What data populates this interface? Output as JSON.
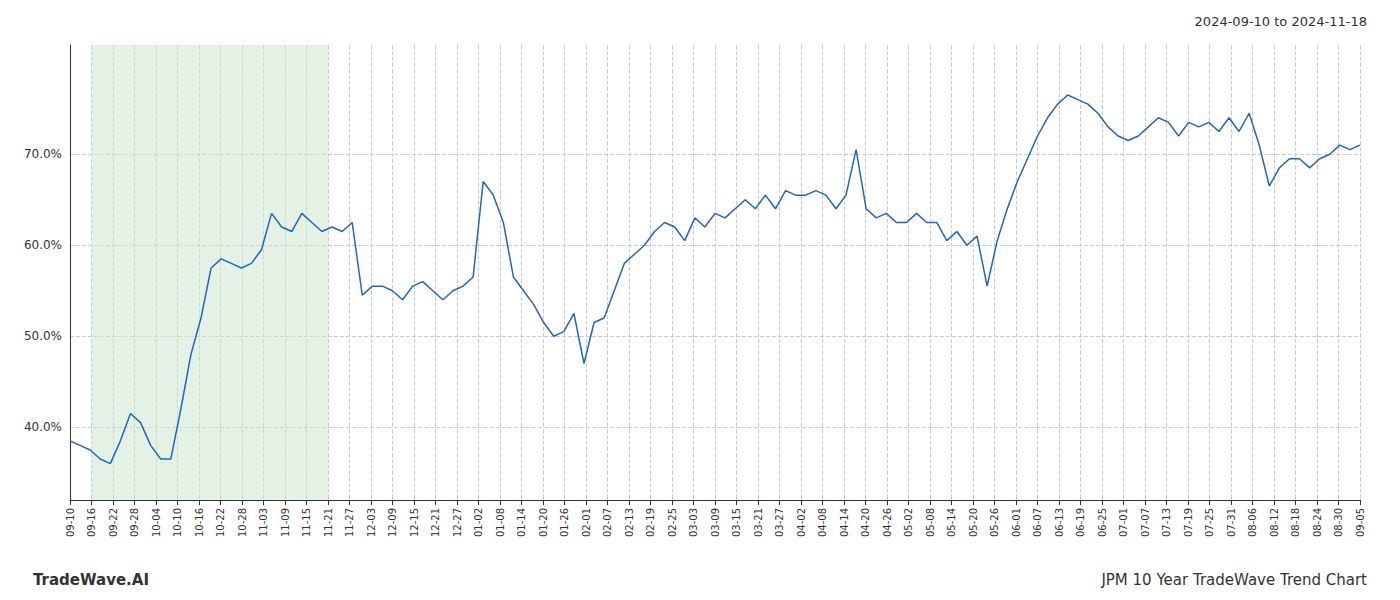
{
  "chart_data": {
    "type": "line",
    "title": "2024-09-10 to 2024-11-18",
    "footer_left": "TradeWave.AI",
    "footer_right": "JPM 10 Year TradeWave Trend Chart",
    "color": "#2266bb",
    "grid": true,
    "shaded_range": {
      "from": "09-16",
      "to": "11-21",
      "color": "#c8e6c9"
    },
    "xlim": [
      0,
      60
    ],
    "xticks": [
      {
        "value": 0,
        "label": "09-10"
      },
      {
        "value": 1,
        "label": "09-16"
      },
      {
        "value": 2,
        "label": "09-22"
      },
      {
        "value": 3,
        "label": "09-28"
      },
      {
        "value": 4,
        "label": "10-04"
      },
      {
        "value": 5,
        "label": "10-10"
      },
      {
        "value": 6,
        "label": "10-16"
      },
      {
        "value": 7,
        "label": "10-22"
      },
      {
        "value": 8,
        "label": "10-28"
      },
      {
        "value": 9,
        "label": "11-03"
      },
      {
        "value": 10,
        "label": "11-09"
      },
      {
        "value": 11,
        "label": "11-15"
      },
      {
        "value": 12,
        "label": "11-21"
      },
      {
        "value": 13,
        "label": "11-27"
      },
      {
        "value": 14,
        "label": "12-03"
      },
      {
        "value": 15,
        "label": "12-09"
      },
      {
        "value": 16,
        "label": "12-15"
      },
      {
        "value": 17,
        "label": "12-21"
      },
      {
        "value": 18,
        "label": "12-27"
      },
      {
        "value": 19,
        "label": "01-02"
      },
      {
        "value": 20,
        "label": "01-08"
      },
      {
        "value": 21,
        "label": "01-14"
      },
      {
        "value": 22,
        "label": "01-20"
      },
      {
        "value": 23,
        "label": "01-26"
      },
      {
        "value": 24,
        "label": "02-01"
      },
      {
        "value": 25,
        "label": "02-07"
      },
      {
        "value": 26,
        "label": "02-13"
      },
      {
        "value": 27,
        "label": "02-19"
      },
      {
        "value": 28,
        "label": "02-25"
      },
      {
        "value": 29,
        "label": "03-03"
      },
      {
        "value": 30,
        "label": "03-09"
      },
      {
        "value": 31,
        "label": "03-15"
      },
      {
        "value": 32,
        "label": "03-21"
      },
      {
        "value": 33,
        "label": "03-27"
      },
      {
        "value": 34,
        "label": "04-02"
      },
      {
        "value": 35,
        "label": "04-08"
      },
      {
        "value": 36,
        "label": "04-14"
      },
      {
        "value": 37,
        "label": "04-20"
      },
      {
        "value": 38,
        "label": "04-26"
      },
      {
        "value": 39,
        "label": "05-02"
      },
      {
        "value": 40,
        "label": "05-08"
      },
      {
        "value": 41,
        "label": "05-14"
      },
      {
        "value": 42,
        "label": "05-20"
      },
      {
        "value": 43,
        "label": "05-26"
      },
      {
        "value": 44,
        "label": "06-01"
      },
      {
        "value": 45,
        "label": "06-07"
      },
      {
        "value": 46,
        "label": "06-13"
      },
      {
        "value": 47,
        "label": "06-19"
      },
      {
        "value": 48,
        "label": "06-25"
      },
      {
        "value": 49,
        "label": "07-01"
      },
      {
        "value": 50,
        "label": "07-07"
      },
      {
        "value": 51,
        "label": "07-13"
      },
      {
        "value": 52,
        "label": "07-19"
      },
      {
        "value": 53,
        "label": "07-25"
      },
      {
        "value": 54,
        "label": "07-31"
      },
      {
        "value": 55,
        "label": "08-06"
      },
      {
        "value": 56,
        "label": "08-12"
      },
      {
        "value": 57,
        "label": "08-18"
      },
      {
        "value": 58,
        "label": "08-24"
      },
      {
        "value": 59,
        "label": "08-30"
      },
      {
        "value": 60,
        "label": "09-05"
      }
    ],
    "ylim": [
      32,
      82
    ],
    "yticks": [
      {
        "value": 40.0,
        "label": "40.0%"
      },
      {
        "value": 50.0,
        "label": "50.0%"
      },
      {
        "value": 60.0,
        "label": "60.0%"
      },
      {
        "value": 70.0,
        "label": "70.0%"
      }
    ],
    "x": [
      0,
      0.46875,
      0.9375,
      1.40625,
      1.875,
      2.34375,
      2.8125,
      3.28125,
      3.75,
      4.21875,
      4.6875,
      5.15625,
      5.625,
      6.09375,
      6.5625,
      7.03125,
      7.5,
      7.96875,
      8.4375,
      8.90625,
      9.375,
      9.84375,
      10.3125,
      10.78125,
      11.25,
      11.71875,
      12.1875,
      12.65625,
      13.125,
      13.59375,
      14.0625,
      14.53125,
      15,
      15.46875,
      15.9375,
      16.40625,
      16.875,
      17.34375,
      17.8125,
      18.28125,
      18.75,
      19.21875,
      19.6875,
      20.15625,
      20.625,
      21.09375,
      21.5625,
      22.03125,
      22.5,
      22.96875,
      23.4375,
      23.90625,
      24.375,
      24.84375,
      25.3125,
      25.78125,
      26.25,
      26.71875,
      27.1875,
      27.65625,
      28.125,
      28.59375,
      29.0625,
      29.53125,
      30,
      30.46875,
      30.9375,
      31.40625,
      31.875,
      32.34375,
      32.8125,
      33.28125,
      33.75,
      34.21875,
      34.6875,
      35.15625,
      35.625,
      36.09375,
      36.5625,
      37.03125,
      37.5,
      37.96875,
      38.4375,
      38.90625,
      39.375,
      39.84375,
      40.3125,
      40.78125,
      41.25,
      41.71875,
      42.1875,
      42.65625,
      43.125,
      43.59375,
      44.0625,
      44.53125,
      45,
      45.46875,
      45.9375,
      46.40625,
      46.875,
      47.34375,
      47.8125,
      48.28125,
      48.75,
      49.21875,
      49.6875,
      50.15625,
      50.625,
      51.09375,
      51.5625,
      52.03125,
      52.5,
      52.96875,
      53.4375,
      53.90625,
      54.375,
      54.84375,
      55.3125,
      55.78125,
      56.25,
      56.71875,
      57.1875,
      57.65625,
      58.125,
      58.59375,
      59.0625,
      59.53125,
      60
    ],
    "values": [
      38.5,
      38.0,
      37.5,
      36.5,
      36.0,
      38.5,
      41.5,
      40.5,
      38.0,
      36.5,
      36.5,
      42.0,
      48.0,
      52.0,
      57.5,
      58.5,
      58.0,
      57.5,
      58.0,
      59.5,
      63.5,
      62.0,
      61.5,
      63.5,
      62.5,
      61.5,
      62.0,
      61.5,
      62.5,
      54.5,
      55.5,
      55.5,
      55.0,
      54.0,
      55.5,
      56.0,
      55.0,
      54.0,
      55.0,
      55.5,
      56.5,
      67.0,
      65.5,
      62.5,
      56.5,
      55.0,
      53.5,
      51.5,
      50.0,
      50.5,
      52.5,
      47.0,
      51.5,
      52.0,
      55.0,
      58.0,
      59.0,
      60.0,
      61.5,
      62.5,
      62.0,
      60.5,
      63.0,
      62.0,
      63.5,
      63.0,
      64.0,
      65.0,
      64.0,
      65.5,
      64.0,
      66.0,
      65.5,
      65.5,
      66.0,
      65.5,
      64.0,
      65.5,
      70.5,
      64.0,
      63.0,
      63.5,
      62.5,
      62.5,
      63.5,
      62.5,
      62.5,
      60.5,
      61.5,
      60.0,
      61.0,
      55.5,
      60.5,
      64.0,
      67.0,
      69.5,
      72.0,
      74.0,
      75.5,
      76.5,
      76.0,
      75.5,
      74.5,
      73.0,
      72.0,
      71.5,
      72.0,
      73.0,
      74.0,
      73.5,
      72.0,
      73.5,
      73.0,
      73.5,
      72.5,
      74.0,
      72.5,
      74.5,
      71.0,
      66.5,
      68.5,
      69.5,
      69.5,
      68.5,
      69.5,
      70.0,
      71.0,
      70.5,
      71.0
    ]
  }
}
